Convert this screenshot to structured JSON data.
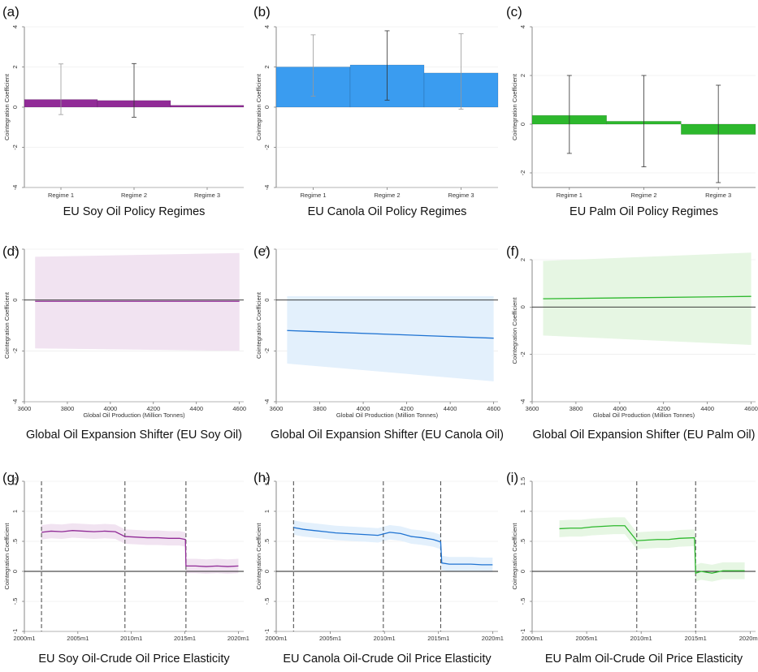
{
  "chart_data": [
    {
      "id": "a",
      "type": "bar",
      "letter": "(a)",
      "caption": "EU Soy Oil Policy Regimes",
      "color": "#912b97",
      "categories": [
        "Regime 1",
        "Regime 2",
        "Regime 3"
      ],
      "values": [
        0.38,
        0.33,
        0.09
      ],
      "ci_low": [
        -0.37,
        -0.5,
        null
      ],
      "ci_high": [
        2.15,
        2.17,
        null
      ],
      "ylabel": "Cointegration Coefficient",
      "ylim": [
        -4,
        4
      ],
      "yticks": [
        -4,
        -2,
        0,
        2,
        4
      ],
      "ytick_labels": [
        "-4",
        "-2",
        "0",
        "2",
        "4"
      ],
      "ref_line": 0
    },
    {
      "id": "b",
      "type": "bar",
      "letter": "(b)",
      "caption": "EU Canola Oil Policy Regimes",
      "color": "#3a9cf0",
      "categories": [
        "Regime 1",
        "Regime 2",
        "Regime 3"
      ],
      "values": [
        2.0,
        2.1,
        1.7
      ],
      "ci_low": [
        0.55,
        0.35,
        -0.1
      ],
      "ci_high": [
        3.6,
        3.8,
        3.65
      ],
      "ylabel": "Cointegration Coefficient",
      "ylim": [
        -4,
        4
      ],
      "yticks": [
        -4,
        -2,
        0,
        2,
        4
      ],
      "ytick_labels": [
        "-4",
        "-2",
        "0",
        "2",
        "4"
      ],
      "ref_line": 0
    },
    {
      "id": "c",
      "type": "bar",
      "letter": "(c)",
      "caption": "EU Palm Oil Policy Regimes",
      "color": "#2db82d",
      "categories": [
        "Regime 1",
        "Regime 2",
        "Regime 3"
      ],
      "values": [
        0.36,
        0.12,
        -0.42
      ],
      "ci_low": [
        -1.2,
        -1.75,
        -2.4
      ],
      "ci_high": [
        2.0,
        2.0,
        1.6
      ],
      "ylabel": "Cointegration Coefficient",
      "ylim": [
        -2.6,
        4
      ],
      "yticks": [
        -2,
        0,
        2,
        4
      ],
      "ytick_labels": [
        "-2",
        "0",
        "2",
        "4"
      ],
      "ref_line": 0
    },
    {
      "id": "d",
      "type": "line",
      "letter": "(d)",
      "caption": "Global Oil Expansion Shifter (EU Soy Oil)",
      "color": "#912b97",
      "band_color": "#f1e3f1",
      "x": [
        3650,
        4600
      ],
      "y": [
        -0.05,
        -0.05
      ],
      "ci_low": [
        -1.9,
        -2.0
      ],
      "ci_high": [
        1.7,
        1.85
      ],
      "xlabel": "Global Oil Production (Million Tonnes)",
      "ylabel": "Cointegration Coefficient",
      "xlim": [
        3600,
        4620
      ],
      "xticks": [
        3600,
        3800,
        4000,
        4200,
        4400,
        4600
      ],
      "xtick_labels": [
        "3600",
        "3800",
        "4000",
        "4200",
        "4400",
        "4600"
      ],
      "ylim": [
        -4,
        2
      ],
      "yticks": [
        -4,
        -2,
        0,
        2
      ],
      "ytick_labels": [
        "-4",
        "-2",
        "0",
        "2"
      ],
      "ref_line": 0
    },
    {
      "id": "e",
      "type": "line",
      "letter": "(e)",
      "caption": "Global Oil Expansion Shifter (EU Canola Oil)",
      "color": "#1f73d2",
      "band_color": "#e3f0fc",
      "x": [
        3650,
        4600
      ],
      "y": [
        -1.2,
        -1.5
      ],
      "ci_low": [
        -2.5,
        -3.2
      ],
      "ci_high": [
        0.15,
        0.15
      ],
      "xlabel": "Global Oil Production (Million Tonnes)",
      "ylabel": "Cointegration Coefficient",
      "xlim": [
        3600,
        4620
      ],
      "xticks": [
        3600,
        3800,
        4000,
        4200,
        4400,
        4600
      ],
      "xtick_labels": [
        "3600",
        "3800",
        "4000",
        "4200",
        "4400",
        "4600"
      ],
      "ylim": [
        -4,
        2
      ],
      "yticks": [
        -4,
        -2,
        0,
        2
      ],
      "ytick_labels": [
        "-4",
        "-2",
        "0",
        "2"
      ],
      "ref_line": 0
    },
    {
      "id": "f",
      "type": "line",
      "letter": "(f)",
      "caption": "Global Oil Expansion Shifter (EU Palm Oil)",
      "color": "#2db82d",
      "band_color": "#e6f6e3",
      "x": [
        3650,
        4600
      ],
      "y": [
        0.35,
        0.45
      ],
      "ci_low": [
        -1.2,
        -1.6
      ],
      "ci_high": [
        1.95,
        2.3
      ],
      "xlabel": "Global Oil Production (Million Tonnes)",
      "ylabel": "Cointegration Coefficient",
      "xlim": [
        3600,
        4620
      ],
      "xticks": [
        3600,
        3800,
        4000,
        4200,
        4400,
        4600
      ],
      "xtick_labels": [
        "3600",
        "3800",
        "4000",
        "4200",
        "4400",
        "4600"
      ],
      "ylim": [
        -4,
        2
      ],
      "yticks": [
        -4,
        -2,
        0,
        2
      ],
      "ytick_labels": [
        "-4",
        "-2",
        "0",
        "2"
      ],
      "ref_line": 0
    },
    {
      "id": "g",
      "type": "line",
      "letter": "(g)",
      "caption": "EU Soy Oil-Crude Oil Price Elasticity",
      "color": "#912b97",
      "band_color": "#f1e3f1",
      "x": [
        2001.6,
        2002.5,
        2003.5,
        2004.5,
        2005.5,
        2006.5,
        2007.5,
        2008.5,
        2009.4,
        2010.5,
        2011.5,
        2012.5,
        2013.5,
        2014.5,
        2015.05,
        2015.1,
        2016,
        2017,
        2018,
        2019,
        2020
      ],
      "y": [
        0.65,
        0.67,
        0.66,
        0.68,
        0.67,
        0.66,
        0.67,
        0.66,
        0.58,
        0.57,
        0.56,
        0.56,
        0.55,
        0.55,
        0.53,
        0.09,
        0.09,
        0.08,
        0.09,
        0.08,
        0.09
      ],
      "band_half": 0.12,
      "vlines": [
        2001.6,
        2009.4,
        2015.1
      ],
      "ylabel": "Cointegration Coefficient",
      "xlim": [
        2000,
        2020.5
      ],
      "xticks": [
        2000,
        2005,
        2010,
        2015,
        2020
      ],
      "xtick_labels": [
        "2000m1",
        "2005m1",
        "2010m1",
        "2015m1",
        "2020m1"
      ],
      "ylim": [
        -1,
        1.5
      ],
      "yticks": [
        -1,
        -0.5,
        0,
        0.5,
        1,
        1.5
      ],
      "ytick_labels": [
        "-1",
        "-.5",
        "0",
        ".5",
        "1",
        "1.5"
      ],
      "ref_line": 0
    },
    {
      "id": "h",
      "type": "line",
      "letter": "(h)",
      "caption": "EU Canola Oil-Crude Oil Price Elasticity",
      "color": "#1f73d2",
      "band_color": "#e3f0fc",
      "x": [
        2001.6,
        2002.5,
        2003.5,
        2004.5,
        2005.5,
        2006.5,
        2007.5,
        2008.5,
        2009.4,
        2010.5,
        2011.5,
        2012.5,
        2013.5,
        2014.5,
        2015.2,
        2015.3,
        2016,
        2017,
        2018,
        2019,
        2020
      ],
      "y": [
        0.73,
        0.7,
        0.68,
        0.66,
        0.64,
        0.63,
        0.62,
        0.61,
        0.6,
        0.65,
        0.63,
        0.58,
        0.56,
        0.53,
        0.49,
        0.14,
        0.12,
        0.12,
        0.12,
        0.11,
        0.11
      ],
      "band_half": 0.12,
      "vlines": [
        2001.6,
        2009.9,
        2015.2
      ],
      "ylabel": "Cointegration Coefficient",
      "xlim": [
        2000,
        2020.5
      ],
      "xticks": [
        2000,
        2005,
        2010,
        2015,
        2020
      ],
      "xtick_labels": [
        "2000m1",
        "2005m1",
        "2010m1",
        "2015m1",
        "2020m1"
      ],
      "ylim": [
        -1,
        1.5
      ],
      "yticks": [
        -1,
        -0.5,
        0,
        0.5,
        1,
        1.5
      ],
      "ytick_labels": [
        "-1",
        "-.5",
        "0",
        ".5",
        "1",
        "1.5"
      ],
      "ref_line": 0
    },
    {
      "id": "i",
      "type": "line",
      "letter": "(i)",
      "caption": "EU Palm Oil-Crude Oil Price Elasticity",
      "color": "#2db82d",
      "band_color": "#e6f6e3",
      "x": [
        2002.5,
        2003.5,
        2004.5,
        2005.5,
        2006.5,
        2007.5,
        2008.5,
        2009.6,
        2010.5,
        2011.5,
        2012.5,
        2013.5,
        2014.9,
        2015.0,
        2015.5,
        2016.5,
        2017.5,
        2018.5,
        2019.5
      ],
      "y": [
        0.71,
        0.72,
        0.72,
        0.74,
        0.75,
        0.76,
        0.76,
        0.51,
        0.52,
        0.53,
        0.53,
        0.55,
        0.56,
        -0.03,
        0.0,
        -0.03,
        0.01,
        0.01,
        0.01
      ],
      "band_half": 0.14,
      "vlines": [
        2009.6,
        2015.0
      ],
      "ylabel": "Cointegration Coefficient",
      "xlim": [
        2000,
        2020.5
      ],
      "xticks": [
        2000,
        2005,
        2010,
        2015,
        2020
      ],
      "xtick_labels": [
        "2000m1",
        "2005m1",
        "2010m1",
        "2015m1",
        "2020m1"
      ],
      "ylim": [
        -1,
        1.5
      ],
      "yticks": [
        -1,
        -0.5,
        0,
        0.5,
        1,
        1.5
      ],
      "ytick_labels": [
        "-1",
        "-.5",
        "0",
        ".5",
        "1",
        "1.5"
      ],
      "ref_line": 0
    }
  ]
}
